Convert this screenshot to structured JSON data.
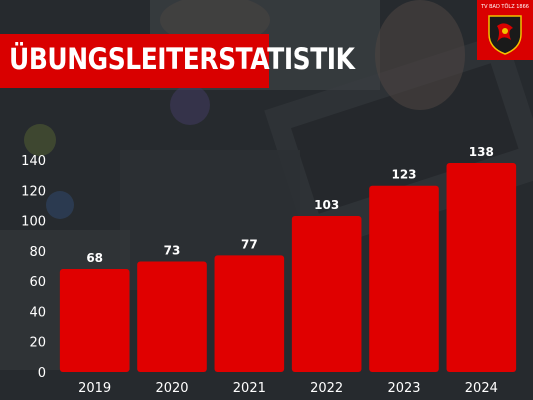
{
  "header": {
    "title": "ÜBUNGSLEITERSTATISTIK",
    "logo_text": "TV BAD TÖLZ 1866",
    "accent_color": "#d90000"
  },
  "chart_data": {
    "type": "bar",
    "title": "ÜBUNGSLEITERSTATISTIK",
    "categories": [
      "2019",
      "2020",
      "2021",
      "2022",
      "2023",
      "2024"
    ],
    "values": [
      68,
      73,
      77,
      103,
      123,
      138
    ],
    "data_labels": [
      "68",
      "73",
      "77",
      "103",
      "123",
      "138"
    ],
    "y_ticks": [
      "0",
      "20",
      "40",
      "60",
      "80",
      "100",
      "120",
      "140"
    ],
    "ylim": [
      0,
      140
    ],
    "grid": false,
    "bar_color": "#e00000",
    "xlabel": "",
    "ylabel": ""
  }
}
